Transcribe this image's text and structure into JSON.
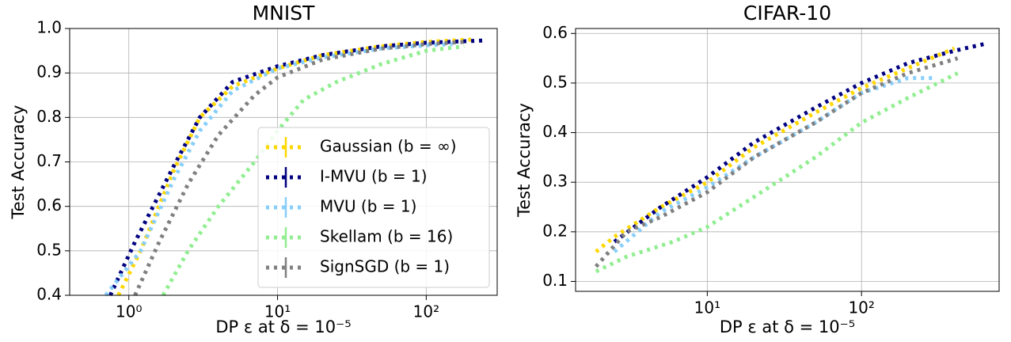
{
  "chart_data": [
    {
      "type": "line",
      "title": "MNIST",
      "xlabel": "DP ε at δ = 10⁻⁵",
      "ylabel": "Test Accuracy",
      "xscale": "log",
      "xlim": [
        0.4,
        300
      ],
      "ylim": [
        0.4,
        1.0
      ],
      "xticks": [
        {
          "value": 1,
          "label": "10⁰"
        },
        {
          "value": 10,
          "label": "10¹"
        },
        {
          "value": 100,
          "label": "10²"
        }
      ],
      "yticks": [
        0.4,
        0.5,
        0.6,
        0.7,
        0.8,
        0.9,
        {
          "value": 1.0,
          "label": "1.0"
        }
      ],
      "grid": true,
      "legend": "lower right",
      "series": [
        {
          "name": "Gaussian (b = ∞)",
          "color": "#ffd700",
          "x": [
            0.85,
            1.2,
            2,
            3,
            5,
            10,
            20,
            50,
            100,
            200
          ],
          "values": [
            0.4,
            0.5,
            0.68,
            0.8,
            0.87,
            0.91,
            0.94,
            0.96,
            0.97,
            0.975
          ]
        },
        {
          "name": "I-MVU (b = 1)",
          "color": "#000080",
          "x": [
            0.75,
            1.1,
            2,
            3,
            5,
            10,
            20,
            50,
            100,
            240
          ],
          "values": [
            0.4,
            0.52,
            0.69,
            0.8,
            0.88,
            0.915,
            0.94,
            0.96,
            0.968,
            0.973
          ]
        },
        {
          "name": "MVU (b = 1)",
          "color": "#87cefa",
          "x": [
            0.7,
            1.2,
            2,
            3,
            5,
            10,
            20,
            50,
            100,
            150
          ],
          "values": [
            0.4,
            0.5,
            0.66,
            0.77,
            0.86,
            0.91,
            0.935,
            0.955,
            0.962,
            0.965
          ]
        },
        {
          "name": "Skellam (b = 16)",
          "color": "#90ee90",
          "x": [
            1.7,
            2.5,
            4,
            7,
            10,
            15,
            25,
            50,
            100,
            180
          ],
          "values": [
            0.4,
            0.5,
            0.6,
            0.7,
            0.77,
            0.84,
            0.88,
            0.92,
            0.95,
            0.96
          ]
        },
        {
          "name": "SignSGD (b = 1)",
          "color": "#808080",
          "x": [
            1.1,
            1.6,
            2.5,
            4,
            7,
            10,
            20,
            50,
            100,
            180
          ],
          "values": [
            0.4,
            0.52,
            0.65,
            0.76,
            0.85,
            0.89,
            0.93,
            0.955,
            0.965,
            0.97
          ]
        }
      ]
    },
    {
      "type": "line",
      "title": "CIFAR-10",
      "xlabel": "DP ε at δ = 10⁻⁵",
      "ylabel": "Test Accuracy",
      "xscale": "log",
      "xlim": [
        1.4,
        780
      ],
      "ylim": [
        0.08,
        0.61
      ],
      "xticks": [
        {
          "value": 10,
          "label": "10¹"
        },
        {
          "value": 100,
          "label": "10²"
        }
      ],
      "yticks": [
        0.1,
        0.2,
        0.3,
        0.4,
        0.5,
        0.6
      ],
      "grid": true,
      "series": [
        {
          "color": "#ffd700",
          "x": [
            1.9,
            2.5,
            5,
            10,
            20,
            50,
            100,
            200,
            400
          ],
          "values": [
            0.16,
            0.19,
            0.25,
            0.3,
            0.37,
            0.44,
            0.49,
            0.53,
            0.57
          ]
        },
        {
          "color": "#000080",
          "x": [
            2.5,
            5,
            10,
            20,
            50,
            100,
            200,
            400,
            650
          ],
          "values": [
            0.18,
            0.25,
            0.31,
            0.38,
            0.45,
            0.5,
            0.54,
            0.565,
            0.58
          ]
        },
        {
          "color": "#87cefa",
          "x": [
            2.5,
            5,
            10,
            20,
            50,
            100,
            200,
            300
          ],
          "values": [
            0.16,
            0.24,
            0.29,
            0.35,
            0.42,
            0.48,
            0.51,
            0.51
          ]
        },
        {
          "color": "#90ee90",
          "x": [
            1.9,
            3,
            6,
            10,
            20,
            50,
            100,
            200,
            420
          ],
          "values": [
            0.12,
            0.15,
            0.18,
            0.21,
            0.27,
            0.35,
            0.42,
            0.47,
            0.52
          ]
        },
        {
          "color": "#808080",
          "x": [
            1.9,
            3,
            5,
            10,
            20,
            50,
            100,
            200,
            420
          ],
          "values": [
            0.13,
            0.2,
            0.23,
            0.28,
            0.35,
            0.42,
            0.48,
            0.52,
            0.55
          ]
        }
      ]
    }
  ]
}
